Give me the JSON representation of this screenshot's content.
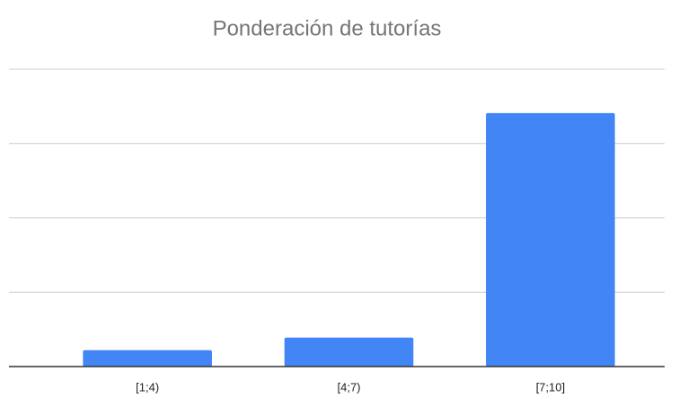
{
  "chart_data": {
    "type": "bar",
    "title": "Ponderación de tutorías",
    "categories": [
      "[1;4)",
      "[4;7)",
      "[7;10]"
    ],
    "values": [
      0.22,
      0.39,
      3.41
    ],
    "color": "#4285f4",
    "ylim": [
      0,
      4
    ],
    "yticks": [
      0,
      1,
      2,
      3,
      4
    ],
    "grid": true,
    "ytick_labels": false
  }
}
